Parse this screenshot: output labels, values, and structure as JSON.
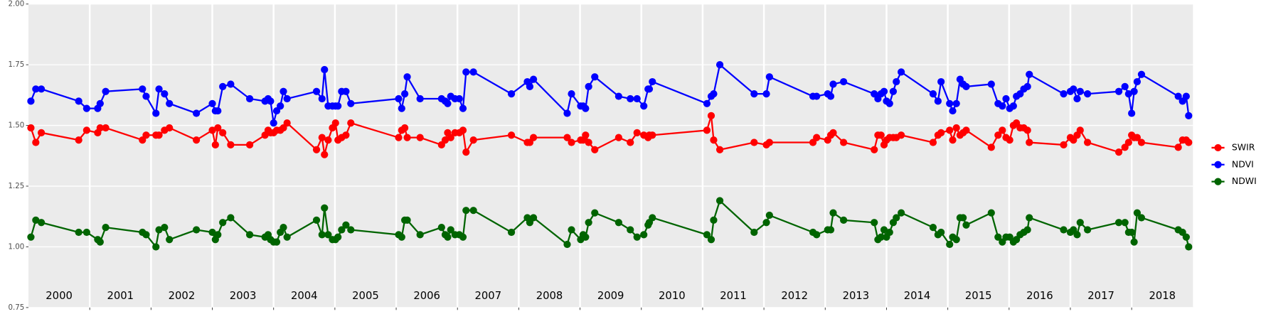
{
  "chart_data": {
    "type": "line",
    "x": [
      2000.04,
      2000.12,
      2000.21,
      2000.82,
      2000.95,
      2001.13,
      2001.17,
      2001.26,
      2001.86,
      2001.92,
      2002.08,
      2002.13,
      2002.22,
      2002.3,
      2002.74,
      2003.0,
      2003.05,
      2003.09,
      2003.17,
      2003.3,
      2003.61,
      2003.86,
      2003.91,
      2003.95,
      2004.0,
      2004.05,
      2004.11,
      2004.16,
      2004.22,
      2004.7,
      2004.79,
      2004.83,
      2004.89,
      2004.96,
      2005.01,
      2005.05,
      2005.11,
      2005.18,
      2005.26,
      2006.04,
      2006.09,
      2006.14,
      2006.18,
      2006.39,
      2006.74,
      2006.8,
      2006.84,
      2006.89,
      2006.96,
      2007.03,
      2007.09,
      2007.14,
      2007.26,
      2007.88,
      2008.14,
      2008.18,
      2008.24,
      2008.79,
      2008.86,
      2009.01,
      2009.05,
      2009.09,
      2009.14,
      2009.24,
      2009.63,
      2009.82,
      2009.93,
      2010.04,
      2010.11,
      2010.13,
      2010.18,
      2011.07,
      2011.14,
      2011.18,
      2011.28,
      2011.84,
      2012.04,
      2012.09,
      2012.8,
      2012.86,
      2013.04,
      2013.09,
      2013.13,
      2013.3,
      2013.8,
      2013.86,
      2013.91,
      2013.96,
      2014.0,
      2014.05,
      2014.11,
      2014.16,
      2014.24,
      2014.76,
      2014.84,
      2014.89,
      2015.03,
      2015.08,
      2015.14,
      2015.2,
      2015.25,
      2015.3,
      2015.71,
      2015.82,
      2015.89,
      2015.95,
      2016.01,
      2016.07,
      2016.12,
      2016.18,
      2016.24,
      2016.3,
      2016.33,
      2016.89,
      2017.0,
      2017.05,
      2017.11,
      2017.16,
      2017.28,
      2017.79,
      2017.89,
      2017.95,
      2018.0,
      2018.04,
      2018.09,
      2018.16,
      2018.76,
      2018.83,
      2018.89,
      2018.93
    ],
    "series": [
      {
        "name": "SWIR",
        "color": "#ff0000",
        "values": [
          1.49,
          1.43,
          1.47,
          1.44,
          1.48,
          1.47,
          1.49,
          1.49,
          1.44,
          1.46,
          1.46,
          1.46,
          1.48,
          1.49,
          1.44,
          1.48,
          1.42,
          1.49,
          1.47,
          1.42,
          1.42,
          1.46,
          1.48,
          1.47,
          1.47,
          1.48,
          1.48,
          1.49,
          1.51,
          1.4,
          1.45,
          1.38,
          1.44,
          1.49,
          1.51,
          1.44,
          1.45,
          1.46,
          1.51,
          1.45,
          1.48,
          1.49,
          1.45,
          1.45,
          1.42,
          1.44,
          1.47,
          1.45,
          1.47,
          1.47,
          1.48,
          1.39,
          1.44,
          1.46,
          1.43,
          1.43,
          1.45,
          1.45,
          1.43,
          1.44,
          1.44,
          1.46,
          1.43,
          1.4,
          1.45,
          1.43,
          1.47,
          1.46,
          1.45,
          1.46,
          1.46,
          1.48,
          1.54,
          1.44,
          1.4,
          1.43,
          1.42,
          1.43,
          1.43,
          1.45,
          1.44,
          1.46,
          1.47,
          1.43,
          1.4,
          1.46,
          1.46,
          1.42,
          1.44,
          1.45,
          1.45,
          1.45,
          1.46,
          1.43,
          1.46,
          1.47,
          1.48,
          1.44,
          1.49,
          1.46,
          1.47,
          1.48,
          1.41,
          1.46,
          1.48,
          1.45,
          1.44,
          1.5,
          1.51,
          1.49,
          1.49,
          1.48,
          1.43,
          1.42,
          1.45,
          1.44,
          1.46,
          1.48,
          1.43,
          1.39,
          1.41,
          1.43,
          1.46,
          1.45,
          1.45,
          1.43,
          1.41,
          1.44,
          1.44,
          1.43
        ]
      },
      {
        "name": "NDVI",
        "color": "#0000ff",
        "values": [
          1.6,
          1.65,
          1.65,
          1.6,
          1.57,
          1.57,
          1.59,
          1.64,
          1.65,
          1.62,
          1.55,
          1.65,
          1.63,
          1.59,
          1.55,
          1.59,
          1.56,
          1.56,
          1.66,
          1.67,
          1.61,
          1.6,
          1.61,
          1.6,
          1.51,
          1.56,
          1.58,
          1.64,
          1.61,
          1.64,
          1.61,
          1.73,
          1.58,
          1.58,
          1.58,
          1.58,
          1.64,
          1.64,
          1.59,
          1.61,
          1.57,
          1.63,
          1.7,
          1.61,
          1.61,
          1.6,
          1.59,
          1.62,
          1.61,
          1.61,
          1.57,
          1.72,
          1.72,
          1.63,
          1.68,
          1.66,
          1.69,
          1.55,
          1.63,
          1.58,
          1.58,
          1.57,
          1.66,
          1.7,
          1.62,
          1.61,
          1.61,
          1.58,
          1.65,
          1.65,
          1.68,
          1.59,
          1.62,
          1.63,
          1.75,
          1.63,
          1.63,
          1.7,
          1.62,
          1.62,
          1.63,
          1.62,
          1.67,
          1.68,
          1.63,
          1.61,
          1.63,
          1.64,
          1.6,
          1.59,
          1.64,
          1.68,
          1.72,
          1.63,
          1.6,
          1.68,
          1.59,
          1.56,
          1.59,
          1.69,
          1.67,
          1.66,
          1.67,
          1.59,
          1.58,
          1.61,
          1.57,
          1.58,
          1.62,
          1.63,
          1.65,
          1.66,
          1.71,
          1.63,
          1.64,
          1.65,
          1.61,
          1.64,
          1.63,
          1.64,
          1.66,
          1.63,
          1.55,
          1.64,
          1.68,
          1.71,
          1.62,
          1.6,
          1.62,
          1.54
        ]
      },
      {
        "name": "NDWI",
        "color": "#006400",
        "values": [
          1.04,
          1.11,
          1.1,
          1.06,
          1.06,
          1.03,
          1.02,
          1.08,
          1.06,
          1.05,
          1.0,
          1.07,
          1.08,
          1.03,
          1.07,
          1.06,
          1.03,
          1.05,
          1.1,
          1.12,
          1.05,
          1.04,
          1.05,
          1.03,
          1.02,
          1.02,
          1.06,
          1.08,
          1.04,
          1.11,
          1.05,
          1.16,
          1.05,
          1.03,
          1.03,
          1.04,
          1.07,
          1.09,
          1.07,
          1.05,
          1.04,
          1.11,
          1.11,
          1.05,
          1.08,
          1.05,
          1.04,
          1.07,
          1.05,
          1.05,
          1.04,
          1.15,
          1.15,
          1.06,
          1.12,
          1.1,
          1.12,
          1.01,
          1.07,
          1.03,
          1.05,
          1.04,
          1.1,
          1.14,
          1.1,
          1.07,
          1.04,
          1.05,
          1.09,
          1.1,
          1.12,
          1.05,
          1.03,
          1.11,
          1.19,
          1.06,
          1.1,
          1.13,
          1.06,
          1.05,
          1.07,
          1.07,
          1.14,
          1.11,
          1.1,
          1.03,
          1.04,
          1.07,
          1.04,
          1.06,
          1.1,
          1.12,
          1.14,
          1.08,
          1.05,
          1.06,
          1.01,
          1.04,
          1.03,
          1.12,
          1.12,
          1.09,
          1.14,
          1.04,
          1.02,
          1.04,
          1.04,
          1.02,
          1.03,
          1.05,
          1.06,
          1.07,
          1.12,
          1.07,
          1.06,
          1.07,
          1.05,
          1.1,
          1.07,
          1.1,
          1.1,
          1.06,
          1.06,
          1.02,
          1.14,
          1.12,
          1.07,
          1.06,
          1.04,
          1.0
        ]
      }
    ],
    "xlim": [
      2000,
      2019
    ],
    "xticks": [
      2001,
      2002,
      2003,
      2004,
      2005,
      2006,
      2007,
      2008,
      2009,
      2010,
      2011,
      2012,
      2013,
      2014,
      2015,
      2016,
      2017,
      2018
    ],
    "year_labels": [
      "2000",
      "2001",
      "2002",
      "2003",
      "2004",
      "2005",
      "2006",
      "2007",
      "2008",
      "2009",
      "2010",
      "2011",
      "2012",
      "2013",
      "2014",
      "2015",
      "2016",
      "2017",
      "2018"
    ],
    "ylim": [
      0.75,
      2.0
    ],
    "yticks": [
      {
        "value": 0.75,
        "label": "0.75"
      },
      {
        "value": 1,
        "label": "1.00"
      },
      {
        "value": 1.25,
        "label": "1.25"
      },
      {
        "value": 1.5,
        "label": "1.50"
      },
      {
        "value": 1.75,
        "label": "1.75"
      },
      {
        "value": 2,
        "label": "2.00"
      }
    ],
    "grid": true,
    "legend": "right"
  }
}
